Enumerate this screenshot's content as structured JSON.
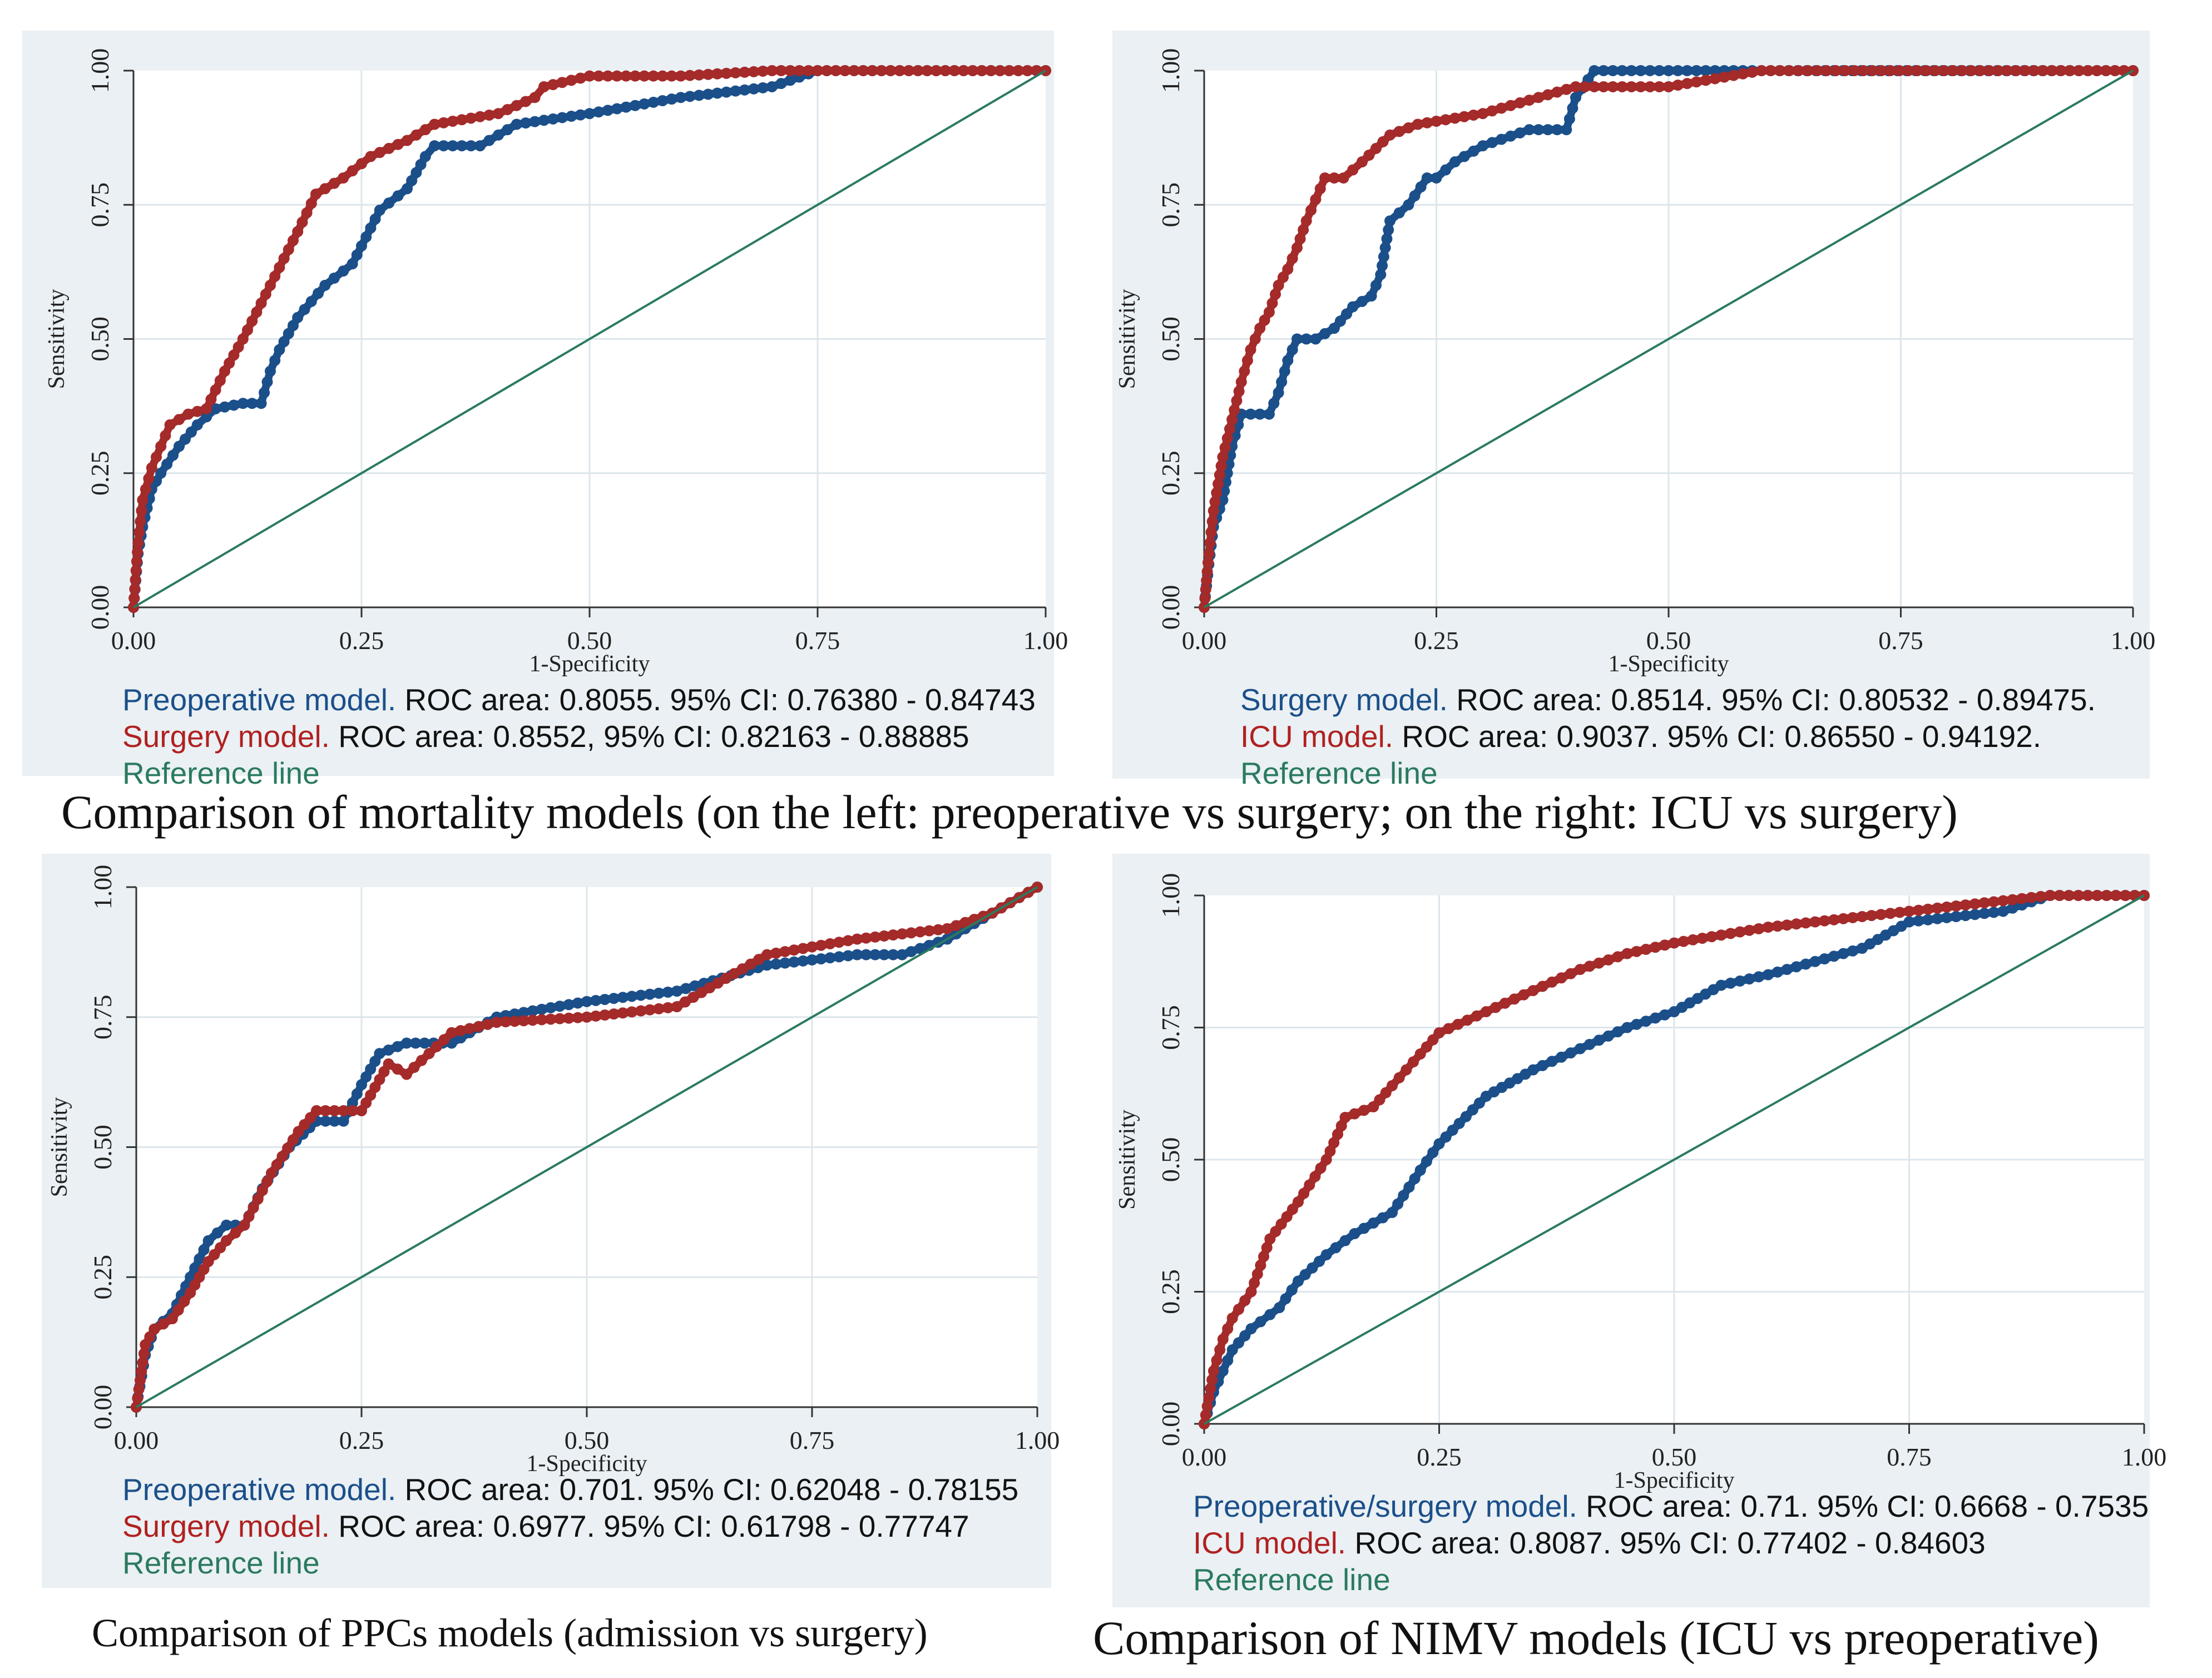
{
  "captions": {
    "mortality": "Comparison of mortality models (on the left: preoperative vs surgery; on the right: ICU vs surgery)",
    "ppcs": "Comparison of PPCs models (admission vs surgery)",
    "nimv": "Comparison of NIMV models (ICU vs preoperative)"
  },
  "colors": {
    "blue": "#1b4f8a",
    "red": "#a52a2a",
    "reference": "#2a7a5f",
    "grid": "#d8e4ea",
    "panel": "#eaf0f3"
  },
  "chart_data": [
    {
      "id": "mortality-preop-vs-surgery",
      "type": "line",
      "xlabel": "1-Specificity",
      "ylabel": "Sensitivity",
      "xlim": [
        0,
        1
      ],
      "ylim": [
        0,
        1
      ],
      "xticks": [
        "0.00",
        "0.25",
        "0.50",
        "0.75",
        "1.00"
      ],
      "yticks": [
        "0.00",
        "0.25",
        "0.50",
        "0.75",
        "1.00"
      ],
      "series": [
        {
          "name": "Preoperative model",
          "color": "blue",
          "x": [
            0,
            0.005,
            0.01,
            0.02,
            0.03,
            0.05,
            0.07,
            0.09,
            0.12,
            0.14,
            0.15,
            0.16,
            0.18,
            0.21,
            0.24,
            0.27,
            0.3,
            0.32,
            0.33,
            0.38,
            0.42,
            0.5,
            0.6,
            0.7,
            0.75,
            0.8,
            1
          ],
          "y": [
            0,
            0.1,
            0.15,
            0.22,
            0.25,
            0.3,
            0.34,
            0.37,
            0.38,
            0.38,
            0.44,
            0.48,
            0.54,
            0.6,
            0.64,
            0.74,
            0.78,
            0.84,
            0.86,
            0.86,
            0.9,
            0.92,
            0.95,
            0.97,
            1,
            1,
            1
          ]
        },
        {
          "name": "Surgery model",
          "color": "red",
          "x": [
            0,
            0.005,
            0.01,
            0.02,
            0.03,
            0.04,
            0.06,
            0.08,
            0.1,
            0.12,
            0.15,
            0.18,
            0.2,
            0.23,
            0.26,
            0.3,
            0.33,
            0.4,
            0.44,
            0.45,
            0.5,
            0.55,
            0.6,
            0.7,
            0.8,
            1
          ],
          "y": [
            0,
            0.12,
            0.2,
            0.26,
            0.3,
            0.34,
            0.36,
            0.37,
            0.44,
            0.5,
            0.6,
            0.7,
            0.77,
            0.8,
            0.84,
            0.87,
            0.9,
            0.92,
            0.95,
            0.97,
            0.99,
            0.99,
            0.99,
            1,
            1,
            1
          ]
        },
        {
          "name": "Reference line",
          "color": "reference",
          "x": [
            0,
            1
          ],
          "y": [
            0,
            1
          ]
        }
      ],
      "legend": [
        {
          "name": "Preoperative model.",
          "color": "blue",
          "text": " ROC area: 0.8055. 95% CI: 0.76380 - 0.84743"
        },
        {
          "name": "Surgery model.",
          "color": "red",
          "text": " ROC area: 0.8552, 95% CI: 0.82163 - 0.88885"
        },
        {
          "name": "Reference line",
          "color": "reference",
          "text": ""
        }
      ]
    },
    {
      "id": "mortality-surgery-vs-icu",
      "type": "line",
      "xlabel": "1-Specificity",
      "ylabel": "Sensitivity",
      "xlim": [
        0,
        1
      ],
      "ylim": [
        0,
        1
      ],
      "xticks": [
        "0.00",
        "0.25",
        "0.50",
        "0.75",
        "1.00"
      ],
      "yticks": [
        "0.00",
        "0.25",
        "0.50",
        "0.75",
        "1.00"
      ],
      "series": [
        {
          "name": "Surgery model",
          "color": "blue",
          "x": [
            0,
            0.005,
            0.01,
            0.02,
            0.03,
            0.04,
            0.07,
            0.08,
            0.09,
            0.1,
            0.12,
            0.14,
            0.16,
            0.18,
            0.19,
            0.2,
            0.22,
            0.24,
            0.25,
            0.27,
            0.3,
            0.35,
            0.39,
            0.4,
            0.42,
            0.5,
            0.6,
            1
          ],
          "y": [
            0,
            0.08,
            0.15,
            0.2,
            0.3,
            0.36,
            0.36,
            0.4,
            0.46,
            0.5,
            0.5,
            0.52,
            0.56,
            0.58,
            0.62,
            0.72,
            0.75,
            0.8,
            0.8,
            0.83,
            0.86,
            0.89,
            0.89,
            0.95,
            1,
            1,
            1,
            1
          ]
        },
        {
          "name": "ICU model",
          "color": "red",
          "x": [
            0,
            0.005,
            0.01,
            0.02,
            0.03,
            0.04,
            0.05,
            0.06,
            0.07,
            0.08,
            0.09,
            0.1,
            0.11,
            0.12,
            0.13,
            0.15,
            0.17,
            0.2,
            0.23,
            0.3,
            0.4,
            0.5,
            0.6,
            0.7,
            1
          ],
          "y": [
            0,
            0.1,
            0.18,
            0.28,
            0.35,
            0.42,
            0.48,
            0.52,
            0.55,
            0.6,
            0.63,
            0.67,
            0.72,
            0.76,
            0.8,
            0.8,
            0.83,
            0.88,
            0.9,
            0.92,
            0.97,
            0.97,
            1,
            1,
            1
          ]
        },
        {
          "name": "Reference line",
          "color": "reference",
          "x": [
            0,
            1
          ],
          "y": [
            0,
            1
          ]
        }
      ],
      "legend": [
        {
          "name": "Surgery model.",
          "color": "blue",
          "text": " ROC area: 0.8514. 95% CI: 0.80532 - 0.89475."
        },
        {
          "name": "ICU model.",
          "color": "red",
          "text": " ROC area: 0.9037. 95% CI: 0.86550 - 0.94192."
        },
        {
          "name": "Reference line",
          "color": "reference",
          "text": ""
        }
      ]
    },
    {
      "id": "ppcs-admission-vs-surgery",
      "type": "line",
      "xlabel": "1-Specificity",
      "ylabel": "Sensitivity",
      "xlim": [
        0,
        1
      ],
      "ylim": [
        0,
        1
      ],
      "xticks": [
        "0.00",
        "0.25",
        "0.50",
        "0.75",
        "1.00"
      ],
      "yticks": [
        "0.00",
        "0.25",
        "0.50",
        "0.75",
        "1.00"
      ],
      "series": [
        {
          "name": "Preoperative model",
          "color": "blue",
          "x": [
            0,
            0.01,
            0.02,
            0.04,
            0.06,
            0.08,
            0.1,
            0.12,
            0.14,
            0.17,
            0.2,
            0.23,
            0.25,
            0.27,
            0.3,
            0.35,
            0.4,
            0.5,
            0.6,
            0.7,
            0.8,
            0.85,
            0.9,
            0.95,
            1
          ],
          "y": [
            0,
            0.1,
            0.15,
            0.18,
            0.25,
            0.32,
            0.35,
            0.35,
            0.42,
            0.5,
            0.55,
            0.55,
            0.62,
            0.68,
            0.7,
            0.7,
            0.75,
            0.78,
            0.8,
            0.85,
            0.87,
            0.87,
            0.9,
            0.95,
            1
          ]
        },
        {
          "name": "Surgery model",
          "color": "red",
          "x": [
            0,
            0.01,
            0.02,
            0.04,
            0.06,
            0.08,
            0.1,
            0.12,
            0.15,
            0.18,
            0.2,
            0.25,
            0.28,
            0.3,
            0.35,
            0.4,
            0.5,
            0.6,
            0.7,
            0.8,
            0.9,
            0.95,
            1
          ],
          "y": [
            0,
            0.12,
            0.15,
            0.17,
            0.22,
            0.28,
            0.32,
            0.35,
            0.45,
            0.53,
            0.57,
            0.57,
            0.66,
            0.64,
            0.72,
            0.74,
            0.75,
            0.77,
            0.87,
            0.9,
            0.92,
            0.95,
            1
          ]
        },
        {
          "name": "Reference line",
          "color": "reference",
          "x": [
            0,
            1
          ],
          "y": [
            0,
            1
          ]
        }
      ],
      "legend": [
        {
          "name": "Preoperative model.",
          "color": "blue",
          "text": " ROC area: 0.701. 95% CI: 0.62048  - 0.78155"
        },
        {
          "name": "Surgery model.",
          "color": "red",
          "text": " ROC area: 0.6977. 95% CI: 0.61798 - 0.77747"
        },
        {
          "name": "Reference line",
          "color": "reference",
          "text": ""
        }
      ]
    },
    {
      "id": "nimv-icu-vs-preoperative",
      "type": "line",
      "xlabel": "1-Specificity",
      "ylabel": "Sensitivity",
      "xlim": [
        0,
        1
      ],
      "ylim": [
        0,
        1
      ],
      "xticks": [
        "0.00",
        "0.25",
        "0.50",
        "0.75",
        "1.00"
      ],
      "yticks": [
        "0.00",
        "0.25",
        "0.50",
        "0.75",
        "1.00"
      ],
      "series": [
        {
          "name": "Preoperative/surgery model",
          "color": "blue",
          "x": [
            0,
            0.01,
            0.02,
            0.03,
            0.05,
            0.08,
            0.1,
            0.13,
            0.16,
            0.2,
            0.23,
            0.25,
            0.3,
            0.35,
            0.4,
            0.45,
            0.5,
            0.55,
            0.6,
            0.7,
            0.75,
            0.85,
            0.9,
            1
          ],
          "y": [
            0,
            0.06,
            0.1,
            0.14,
            0.18,
            0.22,
            0.27,
            0.32,
            0.36,
            0.4,
            0.48,
            0.53,
            0.62,
            0.67,
            0.71,
            0.75,
            0.78,
            0.83,
            0.85,
            0.9,
            0.95,
            0.97,
            1,
            1
          ]
        },
        {
          "name": "ICU model",
          "color": "red",
          "x": [
            0,
            0.01,
            0.02,
            0.03,
            0.05,
            0.07,
            0.1,
            0.13,
            0.15,
            0.18,
            0.2,
            0.23,
            0.25,
            0.3,
            0.35,
            0.4,
            0.45,
            0.5,
            0.6,
            0.7,
            0.8,
            0.9,
            1
          ],
          "y": [
            0,
            0.1,
            0.16,
            0.2,
            0.25,
            0.35,
            0.42,
            0.5,
            0.58,
            0.6,
            0.64,
            0.7,
            0.74,
            0.78,
            0.82,
            0.86,
            0.89,
            0.91,
            0.94,
            0.96,
            0.98,
            1,
            1
          ]
        },
        {
          "name": "Reference line",
          "color": "reference",
          "x": [
            0,
            1
          ],
          "y": [
            0,
            1
          ]
        }
      ],
      "legend": [
        {
          "name": "Preoperative/surgery model.",
          "color": "blue",
          "text": " ROC area: 0.71. 95% CI: 0.6668 - 0.7535"
        },
        {
          "name": "ICU model.",
          "color": "red",
          "text": " ROC area: 0.8087. 95% CI: 0.77402 - 0.84603"
        },
        {
          "name": "Reference line",
          "color": "reference",
          "text": ""
        }
      ]
    }
  ]
}
